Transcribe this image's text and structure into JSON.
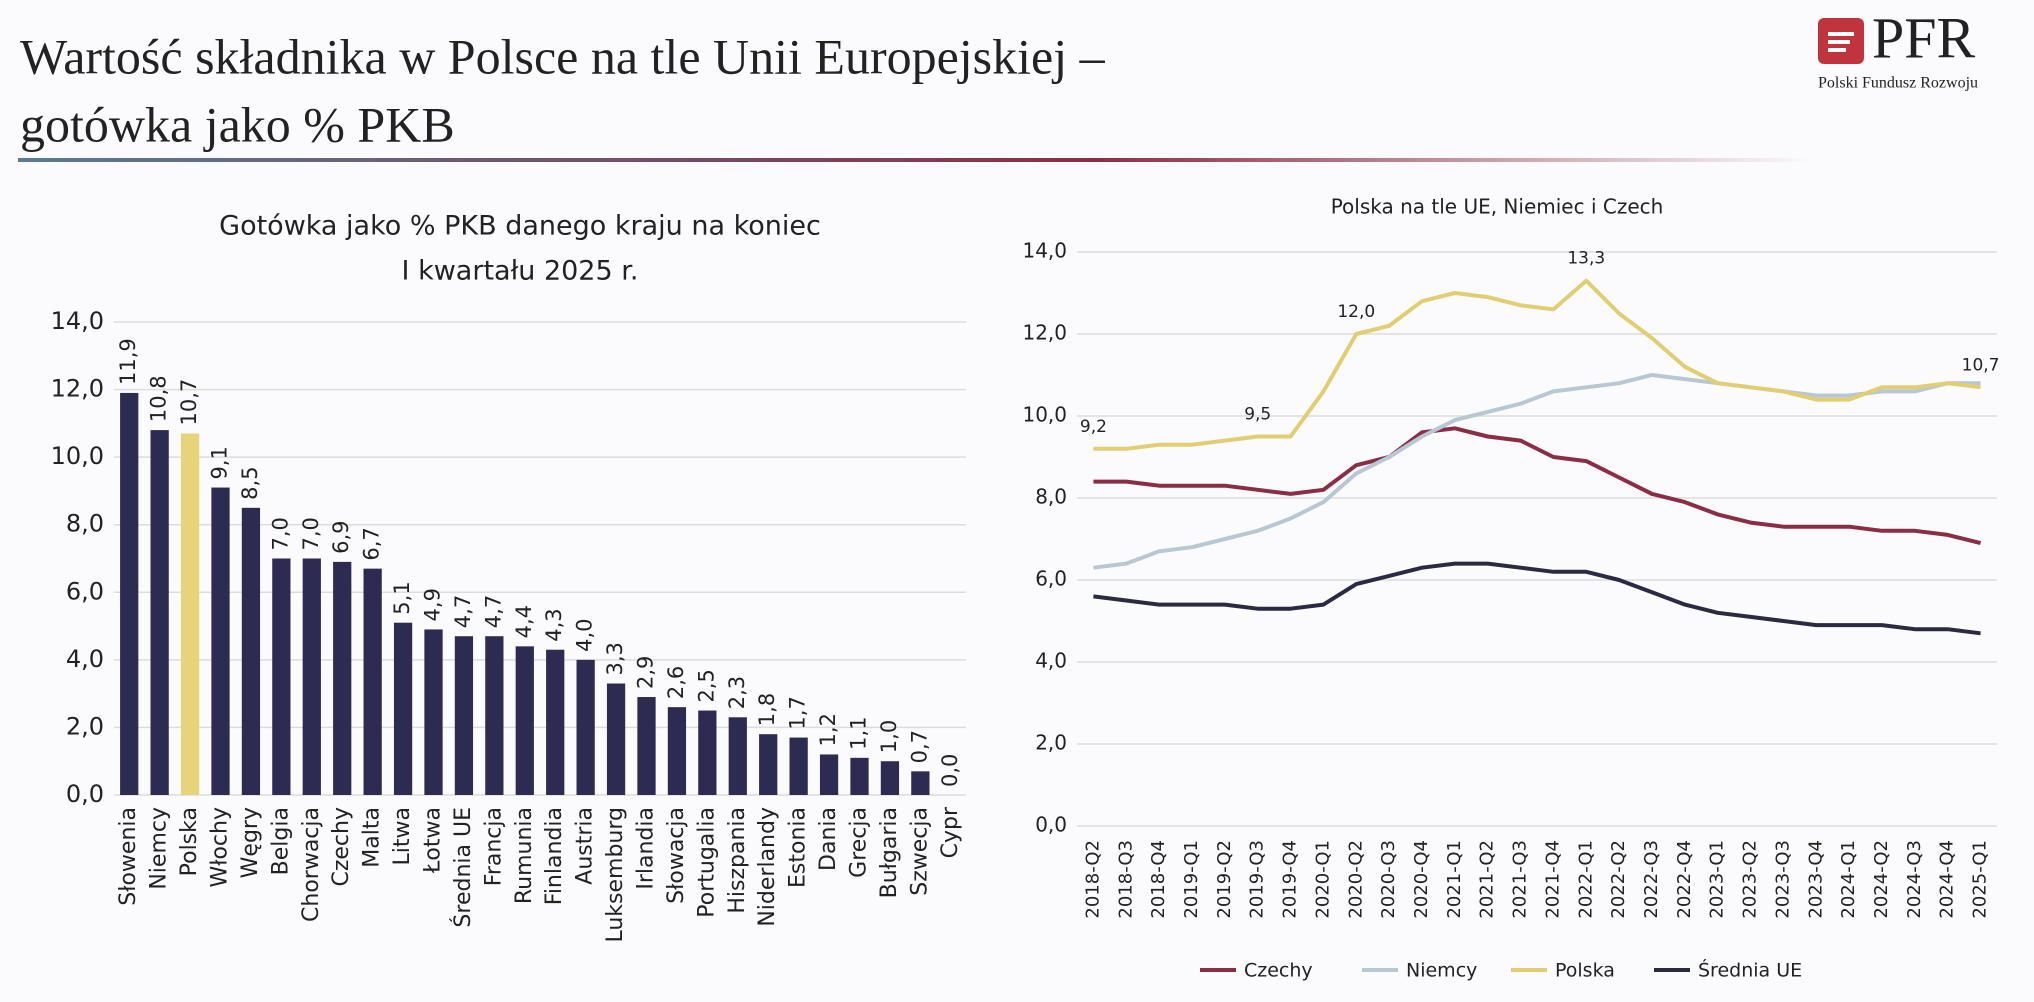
{
  "header": {
    "title_lines": [
      "Wartość składnika w Polsce na tle Unii Europejskiej –",
      "gotówka jako % PKB"
    ],
    "logo": "PFR",
    "logo_subtitle": "Polski Fundusz Rozwoju"
  },
  "chart_data": [
    {
      "type": "bar",
      "title_lines": [
        "Gotówka jako % PKB danego kraju na koniec",
        "I kwartału 2025 r."
      ],
      "categories": [
        "Słowenia",
        "Niemcy",
        "Polska",
        "Włochy",
        "Węgry",
        "Belgia",
        "Chorwacja",
        "Czechy",
        "Malta",
        "Litwa",
        "Łotwa",
        "Średnia UE",
        "Francja",
        "Rumunia",
        "Finlandia",
        "Austria",
        "Luksemburg",
        "Irlandia",
        "Słowacja",
        "Portugalia",
        "Hiszpania",
        "Niderlandy",
        "Estonia",
        "Dania",
        "Grecja",
        "Bułgaria",
        "Szwecja",
        "Cypr"
      ],
      "values": [
        11.9,
        10.8,
        10.7,
        9.1,
        8.5,
        7.0,
        7.0,
        6.9,
        6.7,
        5.1,
        4.9,
        4.7,
        4.7,
        4.4,
        4.3,
        4.0,
        3.3,
        2.9,
        2.6,
        2.5,
        2.3,
        1.8,
        1.7,
        1.2,
        1.1,
        1.0,
        0.7,
        0.0
      ],
      "value_labels": [
        "11,9",
        "10,8",
        "10,7",
        "9,1",
        "8,5",
        "7,0",
        "7,0",
        "6,9",
        "6,7",
        "5,1",
        "4,9",
        "4,7",
        "4,7",
        "4,4",
        "4,3",
        "4,0",
        "3,3",
        "2,9",
        "2,6",
        "2,5",
        "2,3",
        "1,8",
        "1,7",
        "1,2",
        "1,1",
        "1,0",
        "0,7",
        "0,0"
      ],
      "colors": [
        "#2e2b52",
        "#2e2b52",
        "#e8d27a",
        "#2e2b52",
        "#2e2b52",
        "#2e2b52",
        "#2e2b52",
        "#2e2b52",
        "#2e2b52",
        "#2e2b52",
        "#2e2b52",
        "#2e2b52",
        "#2e2b52",
        "#2e2b52",
        "#2e2b52",
        "#2e2b52",
        "#2e2b52",
        "#2e2b52",
        "#2e2b52",
        "#2e2b52",
        "#2e2b52",
        "#2e2b52",
        "#2e2b52",
        "#2e2b52",
        "#2e2b52",
        "#2e2b52",
        "#2e2b52",
        "#2e2b52"
      ],
      "ylim": [
        0,
        14
      ],
      "yticks": [
        {
          "value": 0,
          "label": "0,0"
        },
        {
          "value": 2,
          "label": "2,0"
        },
        {
          "value": 4,
          "label": "4,0"
        },
        {
          "value": 6,
          "label": "6,0"
        },
        {
          "value": 8,
          "label": "8,0"
        },
        {
          "value": 10,
          "label": "10,0"
        },
        {
          "value": 12,
          "label": "12,0"
        },
        {
          "value": 14,
          "label": "14,0"
        }
      ],
      "grid": true
    },
    {
      "type": "line",
      "title": "Polska na tle UE, Niemiec i Czech",
      "categories": [
        "2018-Q2",
        "2018-Q3",
        "2018-Q4",
        "2019-Q1",
        "2019-Q2",
        "2019-Q3",
        "2019-Q4",
        "2020-Q1",
        "2020-Q2",
        "2020-Q3",
        "2020-Q4",
        "2021-Q1",
        "2021-Q2",
        "2021-Q3",
        "2021-Q4",
        "2022-Q1",
        "2022-Q2",
        "2022-Q3",
        "2022-Q4",
        "2023-Q1",
        "2023-Q2",
        "2023-Q3",
        "2023-Q4",
        "2024-Q1",
        "2024-Q2",
        "2024-Q3",
        "2024-Q4",
        "2025-Q1"
      ],
      "series": [
        {
          "name": "Czechy",
          "color": "#8b2e45",
          "values": [
            8.4,
            8.4,
            8.3,
            8.3,
            8.3,
            8.2,
            8.1,
            8.2,
            8.8,
            9.0,
            9.6,
            9.7,
            9.5,
            9.4,
            9.0,
            8.9,
            8.5,
            8.1,
            7.9,
            7.6,
            7.4,
            7.3,
            7.3,
            7.3,
            7.2,
            7.2,
            7.1,
            6.9
          ]
        },
        {
          "name": "Niemcy",
          "color": "#b8c7d4",
          "values": [
            6.3,
            6.4,
            6.7,
            6.8,
            7.0,
            7.2,
            7.5,
            7.9,
            8.6,
            9.0,
            9.5,
            9.9,
            10.1,
            10.3,
            10.6,
            10.7,
            10.8,
            11.0,
            10.9,
            10.8,
            10.7,
            10.6,
            10.5,
            10.5,
            10.6,
            10.6,
            10.8,
            10.8
          ]
        },
        {
          "name": "Polska",
          "color": "#e3cd72",
          "values": [
            9.2,
            9.2,
            9.3,
            9.3,
            9.4,
            9.5,
            9.5,
            10.6,
            12.0,
            12.2,
            12.8,
            13.0,
            12.9,
            12.7,
            12.6,
            13.3,
            12.5,
            11.9,
            11.2,
            10.8,
            10.7,
            10.6,
            10.4,
            10.4,
            10.7,
            10.7,
            10.8,
            10.7
          ],
          "value_labels": [
            "9,2",
            null,
            null,
            null,
            null,
            "9,5",
            null,
            null,
            "12,0",
            null,
            null,
            null,
            null,
            null,
            null,
            "13,3",
            null,
            null,
            null,
            null,
            null,
            null,
            null,
            null,
            null,
            null,
            null,
            "10,7"
          ]
        },
        {
          "name": "Średnia UE",
          "color": "#2b2a45",
          "values": [
            5.6,
            5.5,
            5.4,
            5.4,
            5.4,
            5.3,
            5.3,
            5.4,
            5.9,
            6.1,
            6.3,
            6.4,
            6.4,
            6.3,
            6.2,
            6.2,
            6.0,
            5.7,
            5.4,
            5.2,
            5.1,
            5.0,
            4.9,
            4.9,
            4.9,
            4.8,
            4.8,
            4.7
          ]
        }
      ],
      "ylim": [
        0,
        14
      ],
      "yticks": [
        {
          "value": 0,
          "label": "0,0"
        },
        {
          "value": 2,
          "label": "2,0"
        },
        {
          "value": 4,
          "label": "4,0"
        },
        {
          "value": 6,
          "label": "6,0"
        },
        {
          "value": 8,
          "label": "8,0"
        },
        {
          "value": 10,
          "label": "10,0"
        },
        {
          "value": 12,
          "label": "12,0"
        },
        {
          "value": 14,
          "label": "14,0"
        }
      ],
      "grid": true
    }
  ]
}
